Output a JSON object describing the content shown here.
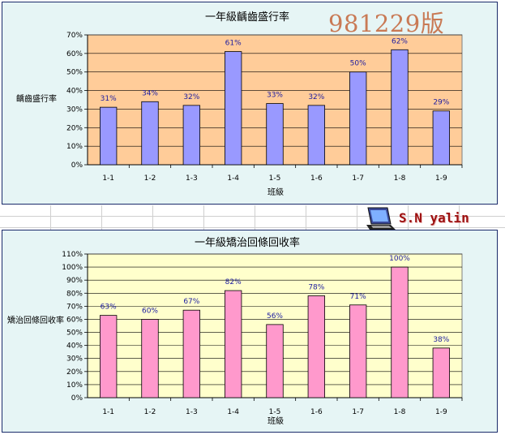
{
  "stamp": "981229版",
  "logo": {
    "text": "S.N  yalin",
    "icon": "laptop-icon"
  },
  "colors": {
    "panel_bg": "#e6f5f5",
    "panel_border": "#1a2a6a"
  },
  "chart_data": [
    {
      "type": "bar",
      "title": "一年級齲齒盛行率",
      "xlabel": "班級",
      "ylabel": "齲齒盛行率",
      "categories": [
        "1-1",
        "1-2",
        "1-3",
        "1-4",
        "1-5",
        "1-6",
        "1-7",
        "1-8",
        "1-9"
      ],
      "values": [
        31,
        34,
        32,
        61,
        33,
        32,
        50,
        62,
        29
      ],
      "data_labels": [
        "31%",
        "34%",
        "32%",
        "61%",
        "33%",
        "32%",
        "50%",
        "62%",
        "29%"
      ],
      "y_ticks": [
        "0%",
        "10%",
        "20%",
        "30%",
        "40%",
        "50%",
        "60%",
        "70%"
      ],
      "ylim": [
        0,
        70
      ],
      "grid": true,
      "plot_bg": "#ffcc99",
      "bar_color": "#9999ff"
    },
    {
      "type": "bar",
      "title": "一年級矯治回條回收率",
      "xlabel": "班級",
      "ylabel": "矯治回條回收率",
      "categories": [
        "1-1",
        "1-2",
        "1-3",
        "1-4",
        "1-5",
        "1-6",
        "1-7",
        "1-8",
        "1-9"
      ],
      "values": [
        63,
        60,
        67,
        82,
        56,
        78,
        71,
        100,
        38
      ],
      "data_labels": [
        "63%",
        "60%",
        "67%",
        "82%",
        "56%",
        "78%",
        "71%",
        "100%",
        "38%"
      ],
      "y_ticks": [
        "0%",
        "10%",
        "20%",
        "30%",
        "40%",
        "50%",
        "60%",
        "70%",
        "80%",
        "90%",
        "100%",
        "110%"
      ],
      "ylim": [
        0,
        110
      ],
      "grid": true,
      "plot_bg": "#ffffcc",
      "bar_color": "#ff99cc"
    }
  ]
}
